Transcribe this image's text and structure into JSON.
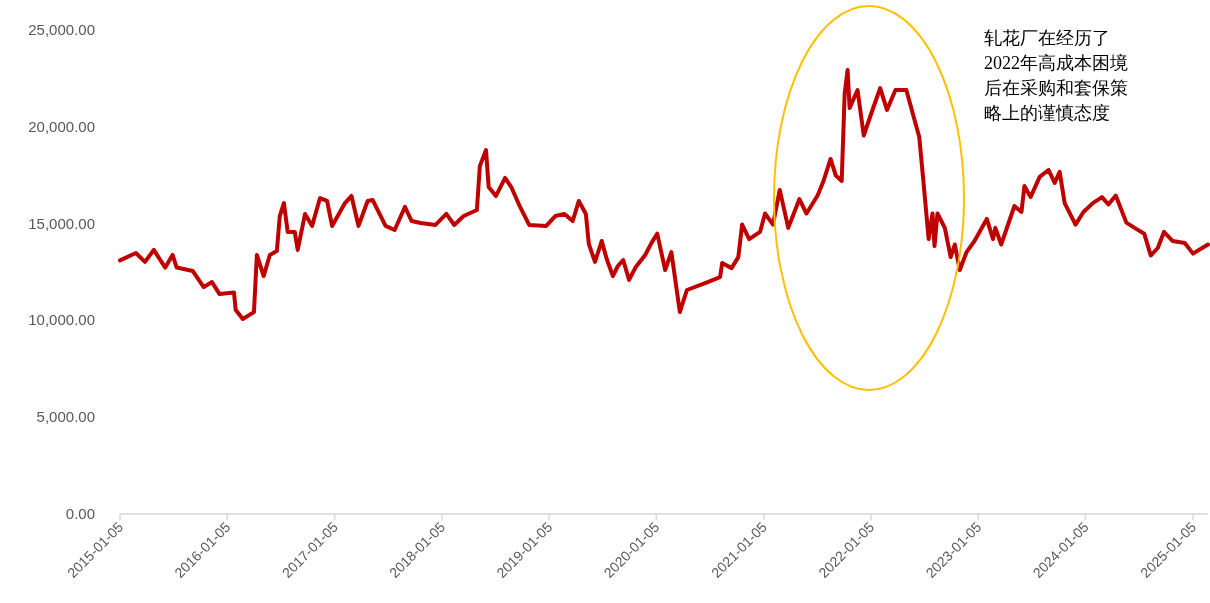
{
  "chart_data": {
    "type": "line",
    "color": "#c00000",
    "x": [
      "2015-01-05",
      "2015-02-28",
      "2015-03-31",
      "2015-04-30",
      "2015-06-08",
      "2015-07-03",
      "2015-07-17",
      "2015-09-10",
      "2015-10-17",
      "2015-11-14",
      "2015-12-10",
      "2016-01-28",
      "2016-02-03",
      "2016-02-27",
      "2016-04-05",
      "2016-04-15",
      "2016-05-08",
      "2016-05-29",
      "2016-06-22",
      "2016-07-02",
      "2016-07-16",
      "2016-07-29",
      "2016-08-22",
      "2016-09-01",
      "2016-09-26",
      "2016-10-20",
      "2016-11-16",
      "2016-12-10",
      "2016-12-27",
      "2017-02-09",
      "2017-03-03",
      "2017-03-27",
      "2017-04-27",
      "2017-05-14",
      "2017-06-27",
      "2017-07-28",
      "2017-09-01",
      "2017-09-24",
      "2017-10-25",
      "2017-12-14",
      "2018-01-20",
      "2018-02-16",
      "2018-03-20",
      "2018-05-04",
      "2018-05-14",
      "2018-06-04",
      "2018-06-13",
      "2018-07-08",
      "2018-08-08",
      "2018-08-29",
      "2018-09-28",
      "2018-10-29",
      "2018-12-26",
      "2019-01-26",
      "2019-02-26",
      "2019-03-26",
      "2019-04-16",
      "2019-05-10",
      "2019-05-20",
      "2019-06-10",
      "2019-07-03",
      "2019-07-20",
      "2019-08-10",
      "2019-08-27",
      "2019-09-14",
      "2019-10-04",
      "2019-10-27",
      "2019-11-28",
      "2019-12-20",
      "2020-01-08",
      "2020-02-04",
      "2020-02-25",
      "2020-03-25",
      "2020-04-18",
      "2020-06-19",
      "2020-08-09",
      "2020-08-16",
      "2020-09-17",
      "2020-10-10",
      "2020-10-23",
      "2020-11-16",
      "2020-12-23",
      "2021-01-09",
      "2021-02-05",
      "2021-02-28",
      "2021-03-29",
      "2021-05-06",
      "2021-05-30",
      "2021-07-07",
      "2021-07-27",
      "2021-08-20",
      "2021-09-07",
      "2021-09-27",
      "2021-10-07",
      "2021-10-17",
      "2021-10-24",
      "2021-11-20",
      "2021-12-11",
      "2022-01-12",
      "2022-02-05",
      "2022-02-28",
      "2022-03-29",
      "2022-05-05",
      "2022-06-01",
      "2022-06-18",
      "2022-07-02",
      "2022-07-20",
      "2022-08-02",
      "2022-08-09",
      "2022-08-19",
      "2022-09-13",
      "2022-10-03",
      "2022-10-17",
      "2022-11-03",
      "2022-11-26",
      "2022-12-23",
      "2023-02-03",
      "2023-02-24",
      "2023-03-04",
      "2023-03-24",
      "2023-05-08",
      "2023-06-01",
      "2023-06-11",
      "2023-07-02",
      "2023-08-02",
      "2023-09-01",
      "2023-09-22",
      "2023-10-09",
      "2023-10-26",
      "2023-12-02",
      "2023-12-29",
      "2024-01-30",
      "2024-03-01",
      "2024-03-23",
      "2024-04-17",
      "2024-05-23",
      "2024-06-20",
      "2024-07-23",
      "2024-08-14",
      "2024-09-07",
      "2024-09-28",
      "2024-10-28",
      "2024-12-08",
      "2025-01-05",
      "2025-02-05",
      "2025-02-25"
    ],
    "values": [
      13100,
      13480,
      13020,
      13640,
      12730,
      13380,
      12730,
      12550,
      11720,
      11980,
      11360,
      11440,
      10540,
      10070,
      10430,
      13380,
      12290,
      13380,
      13580,
      15390,
      16060,
      14570,
      14570,
      13640,
      15500,
      14880,
      16320,
      16170,
      14880,
      16060,
      16430,
      14880,
      16170,
      16220,
      14880,
      14670,
      15860,
      15130,
      15030,
      14930,
      15500,
      14930,
      15390,
      15700,
      17970,
      18800,
      16890,
      16430,
      17360,
      16890,
      15860,
      14930,
      14880,
      15390,
      15500,
      15130,
      16170,
      15500,
      13950,
      13020,
      14100,
      13170,
      12290,
      12810,
      13120,
      12090,
      12760,
      13380,
      14020,
      14480,
      12600,
      13530,
      10430,
      11570,
      11930,
      12240,
      12960,
      12700,
      13270,
      14950,
      14200,
      14570,
      15520,
      14950,
      16740,
      14780,
      16270,
      15520,
      16450,
      17200,
      18340,
      17480,
      17200,
      21710,
      22930,
      20970,
      21900,
      19550,
      20970,
      22000,
      20870,
      21900,
      21900,
      20400,
      19470,
      17200,
      14200,
      15520,
      13840,
      15520,
      14780,
      13270,
      13920,
      12600,
      13530,
      14100,
      15240,
      14200,
      14780,
      13920,
      15910,
      15600,
      16940,
      16370,
      17410,
      17770,
      17100,
      17670,
      16060,
      14950,
      15600,
      16060,
      16370,
      15990,
      16450,
      15050,
      14780,
      14480,
      13350,
      13740,
      14570,
      14100,
      14000,
      13450,
      13740,
      13920
    ],
    "xlim": [
      "2015-01-05",
      "2025-02-25"
    ],
    "xticks": [
      "2015-01-05",
      "2016-01-05",
      "2017-01-05",
      "2018-01-05",
      "2019-01-05",
      "2020-01-05",
      "2021-01-05",
      "2022-01-05",
      "2023-01-05",
      "2024-01-05",
      "2025-01-05"
    ],
    "ylim": [
      0,
      25000
    ],
    "yticks": [
      {
        "value": 0,
        "label": "0.00"
      },
      {
        "value": 5000,
        "label": "5,000.00"
      },
      {
        "value": 10000,
        "label": "10,000.00"
      },
      {
        "value": 15000,
        "label": "15,000.00"
      },
      {
        "value": 20000,
        "label": "20,000.00"
      },
      {
        "value": 25000,
        "label": "25,000.00"
      }
    ],
    "annotations": [
      "轧花厂在经历了2022年高成本困境后在采购和套保策略上的谨慎态度"
    ],
    "grid": false,
    "marker": "none",
    "line_style": "solid"
  }
}
